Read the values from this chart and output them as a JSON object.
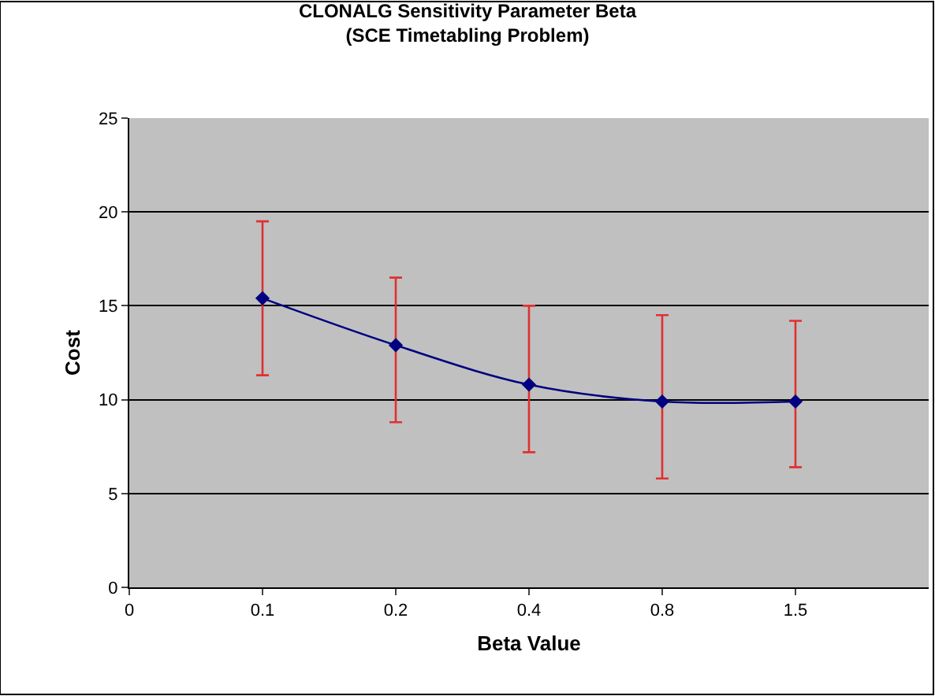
{
  "chart_data": {
    "type": "line",
    "title": "CLONALG Sensitivity Parameter Beta",
    "subtitle": "(SCE Timetabling Problem)",
    "xlabel": "Beta Value",
    "ylabel": "Cost",
    "categories": [
      "0",
      "0.1",
      "0.2",
      "0.4",
      "0.8",
      "1.5"
    ],
    "series": [
      {
        "color": "#000080",
        "values": [
          null,
          15.4,
          12.9,
          10.8,
          9.9,
          9.9
        ],
        "errors": [
          null,
          [
            11.3,
            19.5
          ],
          [
            8.8,
            16.5
          ],
          [
            7.2,
            15.0
          ],
          [
            5.8,
            14.5
          ],
          [
            6.4,
            14.2
          ]
        ]
      }
    ],
    "ylim": [
      0,
      25
    ],
    "yticks": [
      0,
      5,
      10,
      15,
      20,
      25
    ],
    "grid": "y",
    "marker": "diamond"
  }
}
